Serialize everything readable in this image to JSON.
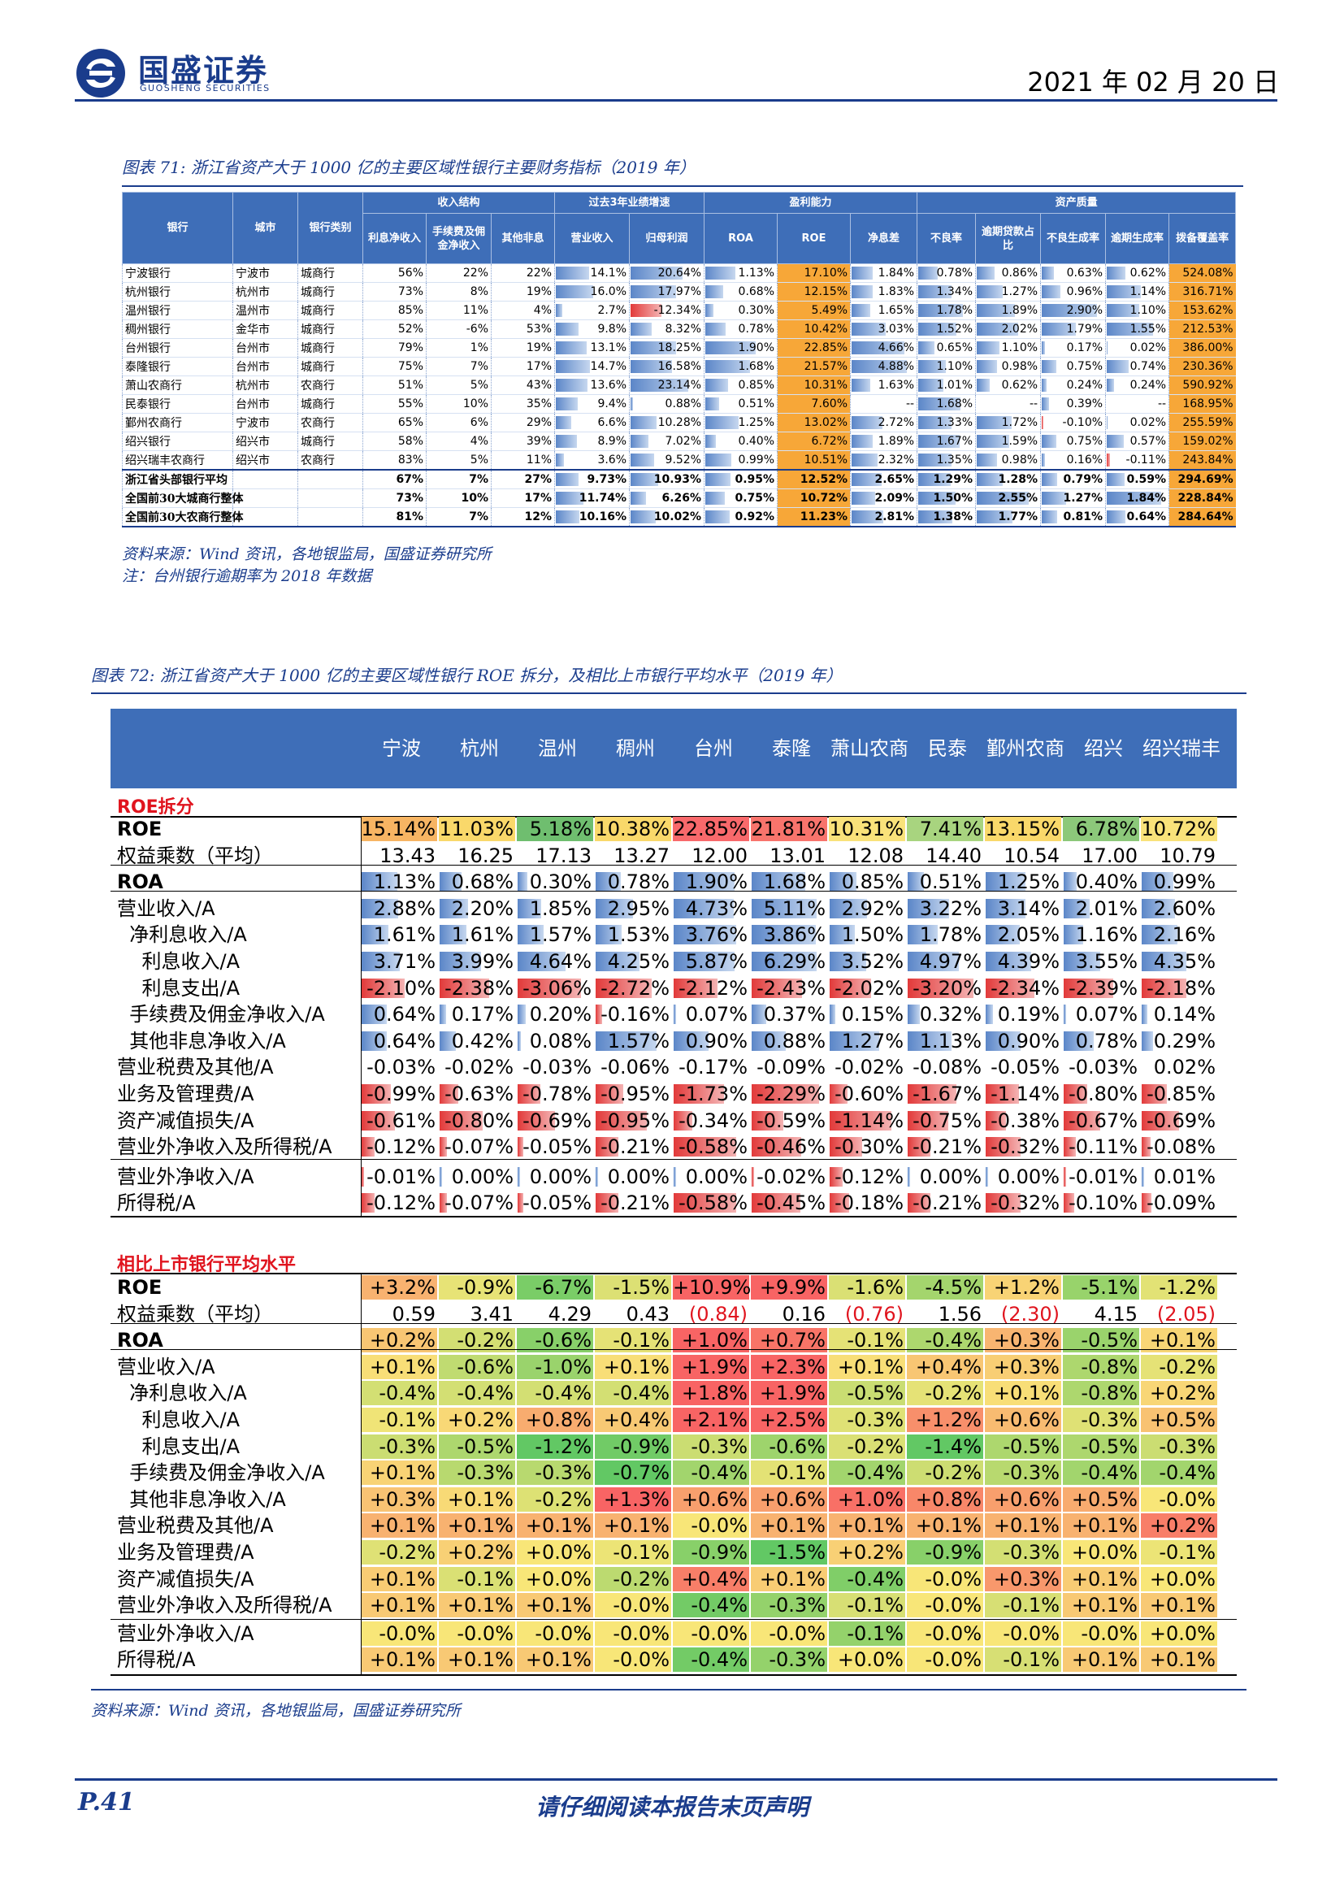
{
  "header": {
    "logo_cn": "国盛证券",
    "logo_en": "GUOSHENG SECURITIES",
    "date": "2021 年 02 月 20 日"
  },
  "fig71": {
    "caption": "图表 71: 浙江省资产大于 1000 亿的主要区域性银行主要财务指标（2019 年）",
    "groups": [
      "收入结构",
      "过去3年业绩增速",
      "盈利能力",
      "资产质量"
    ],
    "columns": [
      "银行",
      "城市",
      "银行类别",
      "利息净收入",
      "手续费及佣金净收入",
      "其他非息",
      "营业收入",
      "归母利润",
      "ROA",
      "ROE",
      "净息差",
      "不良率",
      "逾期贷款占比",
      "不良生成率",
      "逾期生成率",
      "拨备覆盖率"
    ],
    "rows": [
      {
        "bank": "宁波银行",
        "city": "宁波市",
        "type": "城商行",
        "vals": [
          "56%",
          "22%",
          "22%",
          "14.1%",
          "20.64%",
          "1.13%",
          "17.10%",
          "1.84%",
          "0.78%",
          "0.86%",
          "0.63%",
          "0.62%",
          "524.08%"
        ]
      },
      {
        "bank": "杭州银行",
        "city": "杭州市",
        "type": "城商行",
        "vals": [
          "73%",
          "8%",
          "19%",
          "16.0%",
          "17.97%",
          "0.68%",
          "12.15%",
          "1.83%",
          "1.34%",
          "1.27%",
          "0.96%",
          "1.14%",
          "316.71%"
        ]
      },
      {
        "bank": "温州银行",
        "city": "温州市",
        "type": "城商行",
        "vals": [
          "85%",
          "11%",
          "4%",
          "2.7%",
          "-12.34%",
          "0.30%",
          "5.49%",
          "1.65%",
          "1.78%",
          "1.89%",
          "2.90%",
          "1.10%",
          "153.62%"
        ]
      },
      {
        "bank": "稠州银行",
        "city": "金华市",
        "type": "城商行",
        "vals": [
          "52%",
          "-6%",
          "53%",
          "9.8%",
          "8.32%",
          "0.78%",
          "10.42%",
          "3.03%",
          "1.52%",
          "2.02%",
          "1.79%",
          "1.55%",
          "212.53%"
        ]
      },
      {
        "bank": "台州银行",
        "city": "台州市",
        "type": "城商行",
        "vals": [
          "79%",
          "1%",
          "19%",
          "13.1%",
          "18.25%",
          "1.90%",
          "22.85%",
          "4.66%",
          "0.65%",
          "1.10%",
          "0.17%",
          "0.02%",
          "386.00%"
        ]
      },
      {
        "bank": "泰隆银行",
        "city": "台州市",
        "type": "城商行",
        "vals": [
          "75%",
          "7%",
          "17%",
          "14.7%",
          "16.58%",
          "1.68%",
          "21.57%",
          "4.88%",
          "1.10%",
          "0.98%",
          "0.75%",
          "0.74%",
          "230.36%"
        ]
      },
      {
        "bank": "萧山农商行",
        "city": "杭州市",
        "type": "农商行",
        "vals": [
          "51%",
          "5%",
          "43%",
          "13.6%",
          "23.14%",
          "0.85%",
          "10.31%",
          "1.63%",
          "1.01%",
          "0.62%",
          "0.24%",
          "0.24%",
          "590.92%"
        ]
      },
      {
        "bank": "民泰银行",
        "city": "台州市",
        "type": "城商行",
        "vals": [
          "55%",
          "10%",
          "35%",
          "9.4%",
          "0.88%",
          "0.51%",
          "7.60%",
          "--",
          "1.68%",
          "--",
          "0.39%",
          "--",
          "168.95%"
        ]
      },
      {
        "bank": "鄞州农商行",
        "city": "宁波市",
        "type": "农商行",
        "vals": [
          "65%",
          "6%",
          "29%",
          "6.6%",
          "10.28%",
          "1.25%",
          "13.02%",
          "2.72%",
          "1.33%",
          "1.72%",
          "-0.10%",
          "0.02%",
          "255.59%"
        ]
      },
      {
        "bank": "绍兴银行",
        "city": "绍兴市",
        "type": "城商行",
        "vals": [
          "58%",
          "4%",
          "39%",
          "8.9%",
          "7.02%",
          "0.40%",
          "6.72%",
          "1.89%",
          "1.67%",
          "1.59%",
          "0.75%",
          "0.57%",
          "159.02%"
        ]
      },
      {
        "bank": "绍兴瑞丰农商行",
        "city": "绍兴市",
        "type": "农商行",
        "vals": [
          "83%",
          "5%",
          "11%",
          "3.6%",
          "9.52%",
          "0.99%",
          "10.51%",
          "2.32%",
          "1.35%",
          "0.98%",
          "0.16%",
          "-0.11%",
          "243.84%"
        ]
      },
      {
        "bank": "浙江省头部银行平均",
        "city": "",
        "type": "",
        "vals": [
          "67%",
          "7%",
          "27%",
          "9.73%",
          "10.93%",
          "0.95%",
          "12.52%",
          "2.65%",
          "1.29%",
          "1.28%",
          "0.79%",
          "0.59%",
          "294.69%"
        ]
      },
      {
        "bank": "全国前30大城商行整体",
        "city": "",
        "type": "",
        "vals": [
          "73%",
          "10%",
          "17%",
          "11.74%",
          "6.26%",
          "0.75%",
          "10.72%",
          "2.09%",
          "1.50%",
          "2.55%",
          "1.27%",
          "1.84%",
          "228.84%"
        ]
      },
      {
        "bank": "全国前30大农商行整体",
        "city": "",
        "type": "",
        "vals": [
          "81%",
          "7%",
          "12%",
          "10.16%",
          "10.02%",
          "0.92%",
          "11.23%",
          "2.81%",
          "1.38%",
          "1.77%",
          "0.81%",
          "0.64%",
          "284.64%"
        ]
      }
    ],
    "source": "资料来源：Wind 资讯，各地银监局，国盛证券研究所",
    "note": "注：台州银行逾期率为 2018 年数据"
  },
  "fig72": {
    "caption": "图表 72: 浙江省资产大于 1000 亿的主要区域性银行 ROE 拆分，及相比上市银行平均水平（2019 年）",
    "banks": [
      "宁波",
      "杭州",
      "温州",
      "稠州",
      "台州",
      "泰隆",
      "萧山农商",
      "民泰",
      "鄞州农商",
      "绍兴",
      "绍兴瑞丰"
    ],
    "section1_title": "ROE拆分",
    "section1": [
      {
        "label": "ROE",
        "vals": [
          "15.14%",
          "11.03%",
          "5.18%",
          "10.38%",
          "22.85%",
          "21.81%",
          "10.31%",
          "7.41%",
          "13.15%",
          "6.78%",
          "10.72%"
        ]
      },
      {
        "label": "权益乘数（平均）",
        "vals": [
          "13.43",
          "16.25",
          "17.13",
          "13.27",
          "12.00",
          "13.01",
          "12.08",
          "14.40",
          "10.54",
          "17.00",
          "10.79"
        ]
      },
      {
        "label": "ROA",
        "vals": [
          "1.13%",
          "0.68%",
          "0.30%",
          "0.78%",
          "1.90%",
          "1.68%",
          "0.85%",
          "0.51%",
          "1.25%",
          "0.40%",
          "0.99%"
        ]
      },
      {
        "label": "营业收入/A",
        "vals": [
          "2.88%",
          "2.20%",
          "1.85%",
          "2.95%",
          "4.73%",
          "5.11%",
          "2.92%",
          "3.22%",
          "3.14%",
          "2.01%",
          "2.60%"
        ]
      },
      {
        "label": "  净利息收入/A",
        "vals": [
          "1.61%",
          "1.61%",
          "1.57%",
          "1.53%",
          "3.76%",
          "3.86%",
          "1.50%",
          "1.78%",
          "2.05%",
          "1.16%",
          "2.16%"
        ]
      },
      {
        "label": "    利息收入/A",
        "vals": [
          "3.71%",
          "3.99%",
          "4.64%",
          "4.25%",
          "5.87%",
          "6.29%",
          "3.52%",
          "4.97%",
          "4.39%",
          "3.55%",
          "4.35%"
        ]
      },
      {
        "label": "    利息支出/A",
        "vals": [
          "-2.10%",
          "-2.38%",
          "-3.06%",
          "-2.72%",
          "-2.12%",
          "-2.43%",
          "-2.02%",
          "-3.20%",
          "-2.34%",
          "-2.39%",
          "-2.18%"
        ]
      },
      {
        "label": "  手续费及佣金净收入/A",
        "vals": [
          "0.64%",
          "0.17%",
          "0.20%",
          "-0.16%",
          "0.07%",
          "0.37%",
          "0.15%",
          "0.32%",
          "0.19%",
          "0.07%",
          "0.14%"
        ]
      },
      {
        "label": "  其他非息净收入/A",
        "vals": [
          "0.64%",
          "0.42%",
          "0.08%",
          "1.57%",
          "0.90%",
          "0.88%",
          "1.27%",
          "1.13%",
          "0.90%",
          "0.78%",
          "0.29%"
        ]
      },
      {
        "label": "营业税费及其他/A",
        "vals": [
          "-0.03%",
          "-0.02%",
          "-0.03%",
          "-0.06%",
          "-0.17%",
          "-0.09%",
          "-0.02%",
          "-0.08%",
          "-0.05%",
          "-0.03%",
          "0.02%"
        ]
      },
      {
        "label": "业务及管理费/A",
        "vals": [
          "-0.99%",
          "-0.63%",
          "-0.78%",
          "-0.95%",
          "-1.73%",
          "-2.29%",
          "-0.60%",
          "-1.67%",
          "-1.14%",
          "-0.80%",
          "-0.85%"
        ]
      },
      {
        "label": "资产减值损失/A",
        "vals": [
          "-0.61%",
          "-0.80%",
          "-0.69%",
          "-0.95%",
          "-0.34%",
          "-0.59%",
          "-1.14%",
          "-0.75%",
          "-0.38%",
          "-0.67%",
          "-0.69%"
        ]
      },
      {
        "label": "营业外净收入及所得税/A",
        "vals": [
          "-0.12%",
          "-0.07%",
          "-0.05%",
          "-0.21%",
          "-0.58%",
          "-0.46%",
          "-0.30%",
          "-0.21%",
          "-0.32%",
          "-0.11%",
          "-0.08%"
        ]
      },
      {
        "label": "营业外净收入/A",
        "vals": [
          "-0.01%",
          "0.00%",
          "0.00%",
          "0.00%",
          "0.00%",
          "-0.02%",
          "-0.12%",
          "0.00%",
          "0.00%",
          "-0.01%",
          "0.01%"
        ]
      },
      {
        "label": "所得税/A",
        "vals": [
          "-0.12%",
          "-0.07%",
          "-0.05%",
          "-0.21%",
          "-0.58%",
          "-0.45%",
          "-0.18%",
          "-0.21%",
          "-0.32%",
          "-0.10%",
          "-0.09%"
        ]
      }
    ],
    "section2_title": "相比上市银行平均水平",
    "section2": [
      {
        "label": "ROE",
        "vals": [
          "+3.2%",
          "-0.9%",
          "-6.7%",
          "-1.5%",
          "+10.9%",
          "+9.9%",
          "-1.6%",
          "-4.5%",
          "+1.2%",
          "-5.1%",
          "-1.2%"
        ]
      },
      {
        "label": "权益乘数（平均）",
        "vals": [
          "0.59",
          "3.41",
          "4.29",
          "0.43",
          "(0.84)",
          "0.16",
          "(0.76)",
          "1.56",
          "(2.30)",
          "4.15",
          "(2.05)"
        ]
      },
      {
        "label": "ROA",
        "vals": [
          "+0.2%",
          "-0.2%",
          "-0.6%",
          "-0.1%",
          "+1.0%",
          "+0.7%",
          "-0.1%",
          "-0.4%",
          "+0.3%",
          "-0.5%",
          "+0.1%"
        ]
      },
      {
        "label": "营业收入/A",
        "vals": [
          "+0.1%",
          "-0.6%",
          "-1.0%",
          "+0.1%",
          "+1.9%",
          "+2.3%",
          "+0.1%",
          "+0.4%",
          "+0.3%",
          "-0.8%",
          "-0.2%"
        ]
      },
      {
        "label": "  净利息收入/A",
        "vals": [
          "-0.4%",
          "-0.4%",
          "-0.4%",
          "-0.4%",
          "+1.8%",
          "+1.9%",
          "-0.5%",
          "-0.2%",
          "+0.1%",
          "-0.8%",
          "+0.2%"
        ]
      },
      {
        "label": "    利息收入/A",
        "vals": [
          "-0.1%",
          "+0.2%",
          "+0.8%",
          "+0.4%",
          "+2.1%",
          "+2.5%",
          "-0.3%",
          "+1.2%",
          "+0.6%",
          "-0.3%",
          "+0.5%"
        ]
      },
      {
        "label": "    利息支出/A",
        "vals": [
          "-0.3%",
          "-0.5%",
          "-1.2%",
          "-0.9%",
          "-0.3%",
          "-0.6%",
          "-0.2%",
          "-1.4%",
          "-0.5%",
          "-0.5%",
          "-0.3%"
        ]
      },
      {
        "label": "  手续费及佣金净收入/A",
        "vals": [
          "+0.1%",
          "-0.3%",
          "-0.3%",
          "-0.7%",
          "-0.4%",
          "-0.1%",
          "-0.4%",
          "-0.2%",
          "-0.3%",
          "-0.4%",
          "-0.4%"
        ]
      },
      {
        "label": "  其他非息净收入/A",
        "vals": [
          "+0.3%",
          "+0.1%",
          "-0.2%",
          "+1.3%",
          "+0.6%",
          "+0.6%",
          "+1.0%",
          "+0.8%",
          "+0.6%",
          "+0.5%",
          "-0.0%"
        ]
      },
      {
        "label": "营业税费及其他/A",
        "vals": [
          "+0.1%",
          "+0.1%",
          "+0.1%",
          "+0.1%",
          "-0.0%",
          "+0.1%",
          "+0.1%",
          "+0.1%",
          "+0.1%",
          "+0.1%",
          "+0.2%"
        ]
      },
      {
        "label": "业务及管理费/A",
        "vals": [
          "-0.2%",
          "+0.2%",
          "+0.0%",
          "-0.1%",
          "-0.9%",
          "-1.5%",
          "+0.2%",
          "-0.9%",
          "-0.3%",
          "+0.0%",
          "-0.1%"
        ]
      },
      {
        "label": "资产减值损失/A",
        "vals": [
          "+0.1%",
          "-0.1%",
          "+0.0%",
          "-0.2%",
          "+0.4%",
          "+0.1%",
          "-0.4%",
          "-0.0%",
          "+0.3%",
          "+0.1%",
          "+0.0%"
        ]
      },
      {
        "label": "营业外净收入及所得税/A",
        "vals": [
          "+0.1%",
          "+0.1%",
          "+0.1%",
          "-0.0%",
          "-0.4%",
          "-0.3%",
          "-0.1%",
          "-0.0%",
          "-0.1%",
          "+0.1%",
          "+0.1%"
        ]
      },
      {
        "label": "营业外净收入/A",
        "vals": [
          "-0.0%",
          "-0.0%",
          "-0.0%",
          "-0.0%",
          "-0.0%",
          "-0.0%",
          "-0.1%",
          "-0.0%",
          "-0.0%",
          "-0.0%",
          "+0.0%"
        ]
      },
      {
        "label": "所得税/A",
        "vals": [
          "+0.1%",
          "+0.1%",
          "+0.1%",
          "-0.0%",
          "-0.4%",
          "-0.3%",
          "+0.0%",
          "-0.0%",
          "-0.1%",
          "+0.1%",
          "+0.1%"
        ]
      }
    ],
    "source": "资料来源：Wind 资讯，各地银监局，国盛证券研究所"
  },
  "footer": {
    "page": "P.41",
    "disclaimer": "请仔细阅读本报告末页声明"
  },
  "colors": {
    "brand": "#1a3c8c",
    "header_fill": "#3e6eb8",
    "bar_pos": "#5b86c8",
    "bar_neg": "#e23a3a",
    "highlight": "#f7a738"
  }
}
